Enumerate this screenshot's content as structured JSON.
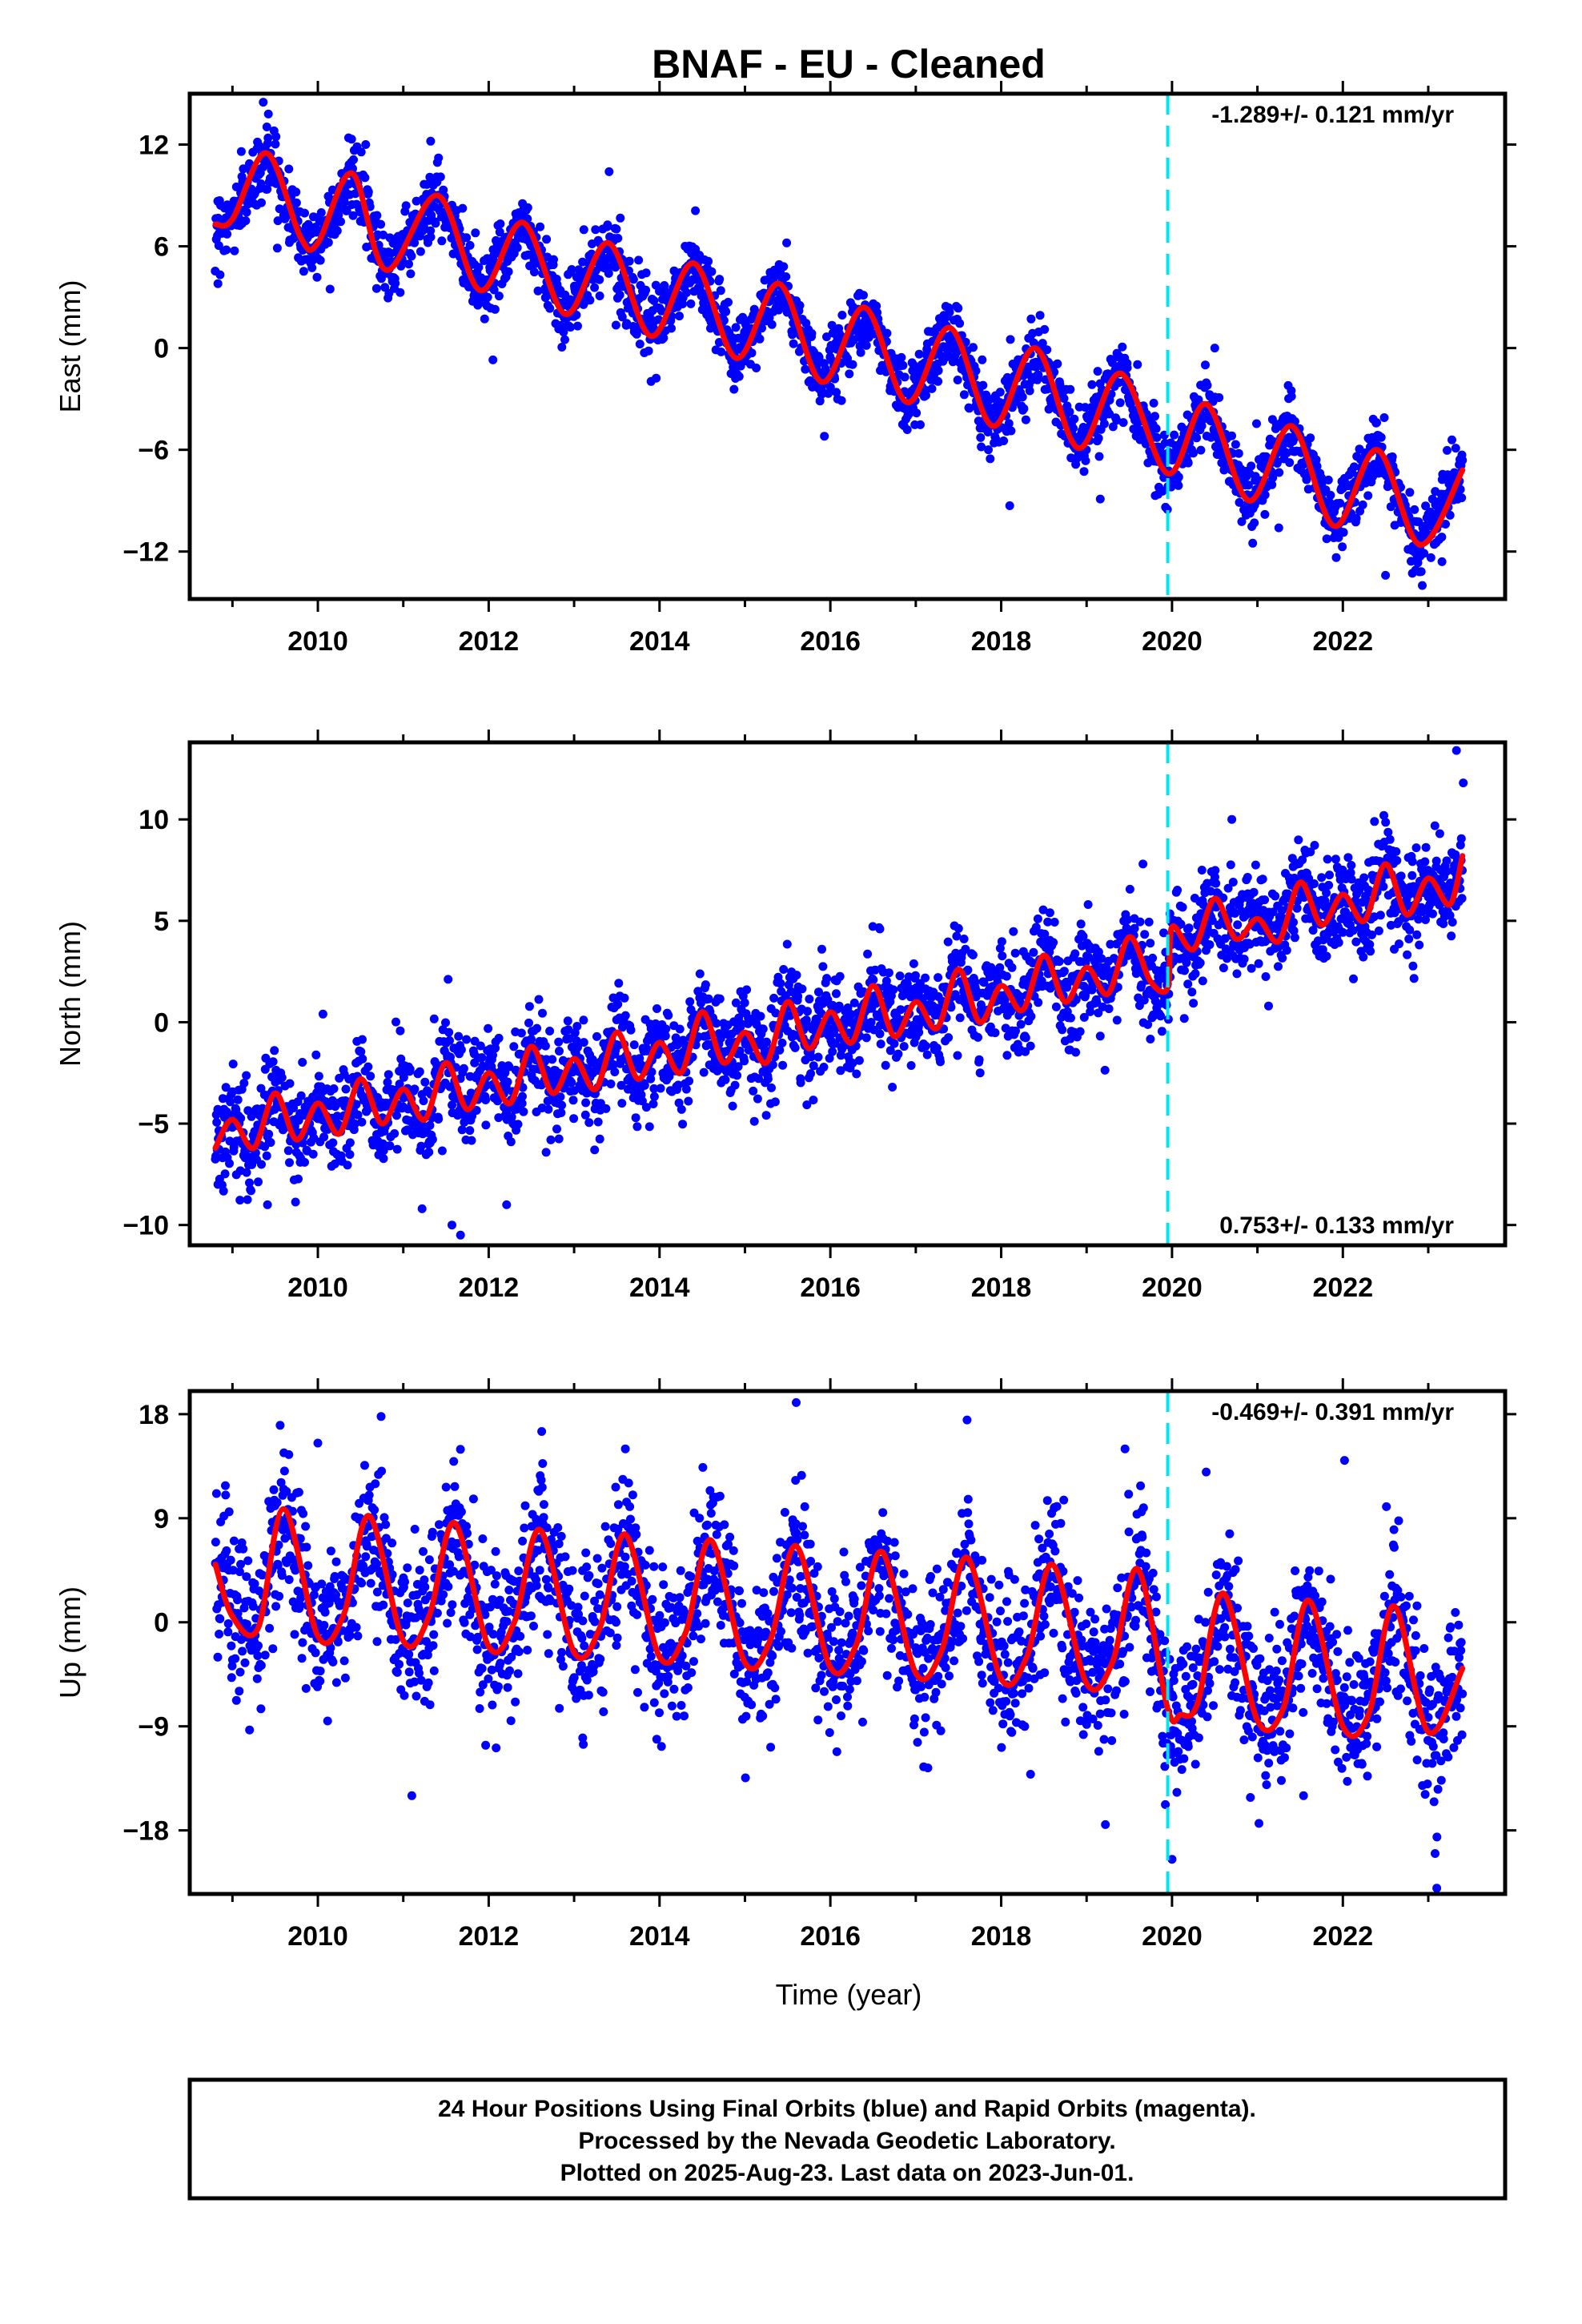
{
  "title": "BNAF  - EU - Cleaned",
  "footer": {
    "lines": [
      "24 Hour Positions Using Final Orbits (blue) and Rapid Orbits (magenta).",
      "Processed by the Nevada Geodetic Laboratory.",
      "Plotted on 2025-Aug-23. Last data on 2023-Jun-01."
    ]
  },
  "colors": {
    "points": "#0000ff",
    "model": "#ff0000",
    "equipment_change": "#00e5f0",
    "frame": "#000000"
  },
  "chart_data": [
    {
      "type": "scatter",
      "name": "east",
      "ylabel": "East (mm)",
      "xlabel": "",
      "xlim": [
        2008.5,
        2023.9
      ],
      "ylim": [
        -14.8,
        15.0
      ],
      "xticks": [
        2010,
        2012,
        2014,
        2016,
        2018,
        2020,
        2022
      ],
      "xtick_labels": [
        "2010",
        "2012",
        "2014",
        "2016",
        "2018",
        "2020",
        "2022"
      ],
      "yticks": [
        12,
        6,
        0,
        -6,
        -12
      ],
      "ytick_labels": [
        "12",
        "6",
        "0",
        "−6",
        "−12"
      ],
      "rate_label": "-1.289+/- 0.121 mm/yr",
      "rate_label_position": "top-right",
      "equipment_change_x": 2019.95,
      "model_x": [
        2008.8,
        2009.0,
        2009.4,
        2009.8,
        2010.0,
        2010.4,
        2010.8,
        2011.4,
        2011.9,
        2012.4,
        2012.9,
        2013.4,
        2013.9,
        2014.4,
        2014.9,
        2015.4,
        2015.9,
        2016.4,
        2016.9,
        2017.4,
        2017.9,
        2018.4,
        2018.9,
        2019.4,
        2019.95,
        2020.4,
        2020.9,
        2021.4,
        2021.9,
        2022.4,
        2022.9,
        2023.4
      ],
      "model_y": [
        7.3,
        7.6,
        11.5,
        6.5,
        6.2,
        10.3,
        4.6,
        9.0,
        3.4,
        7.4,
        2.0,
        6.2,
        0.7,
        5.0,
        -0.6,
        3.8,
        -2.0,
        2.4,
        -3.2,
        1.2,
        -4.6,
        0.0,
        -5.9,
        -1.5,
        -7.4,
        -3.3,
        -9.0,
        -4.6,
        -10.5,
        -6.0,
        -11.6,
        -7.2
      ],
      "sample_points_x": [
        2008.83,
        2009.36,
        2009.42,
        2010.36,
        2010.56,
        2011.32,
        2012.05,
        2013.41,
        2014.42,
        2015.93,
        2018.1,
        2019.16,
        2020.5,
        2021.25,
        2022.5,
        2022.93,
        2023.16
      ],
      "sample_points_y": [
        3.8,
        14.5,
        13.8,
        12.4,
        12.0,
        12.2,
        -0.7,
        10.4,
        8.1,
        -5.2,
        -9.3,
        -8.9,
        0.0,
        -10.6,
        -13.4,
        -14.0,
        -12.6
      ]
    },
    {
      "type": "scatter",
      "name": "north",
      "ylabel": "North (mm)",
      "xlabel": "",
      "xlim": [
        2008.5,
        2023.9
      ],
      "ylim": [
        -11.0,
        13.8
      ],
      "xticks": [
        2010,
        2012,
        2014,
        2016,
        2018,
        2020,
        2022
      ],
      "xtick_labels": [
        "2010",
        "2012",
        "2014",
        "2016",
        "2018",
        "2020",
        "2022"
      ],
      "yticks": [
        10,
        5,
        0,
        -5,
        -10
      ],
      "ytick_labels": [
        "10",
        "5",
        "0",
        "−5",
        "−10"
      ],
      "rate_label": "0.753+/- 0.133 mm/yr",
      "rate_label_position": "bottom-right",
      "equipment_change_x": 2019.95,
      "model_x": [
        2008.8,
        2009.0,
        2009.25,
        2009.5,
        2009.75,
        2010.0,
        2010.25,
        2010.5,
        2010.75,
        2011.0,
        2011.25,
        2011.5,
        2011.75,
        2012.0,
        2012.25,
        2012.5,
        2012.75,
        2013.0,
        2013.25,
        2013.5,
        2013.75,
        2014.0,
        2014.25,
        2014.5,
        2014.75,
        2015.0,
        2015.25,
        2015.5,
        2015.75,
        2016.0,
        2016.25,
        2016.5,
        2016.75,
        2017.0,
        2017.25,
        2017.5,
        2017.75,
        2018.0,
        2018.25,
        2018.5,
        2018.75,
        2019.0,
        2019.25,
        2019.5,
        2019.75,
        2019.95,
        2020.0,
        2020.25,
        2020.5,
        2020.75,
        2021.0,
        2021.25,
        2021.5,
        2021.75,
        2022.0,
        2022.25,
        2022.5,
        2022.75,
        2023.0,
        2023.25,
        2023.4
      ],
      "model_y": [
        -6.2,
        -4.8,
        -6.2,
        -3.5,
        -5.8,
        -4.0,
        -5.5,
        -2.8,
        -5.0,
        -3.3,
        -4.8,
        -2.0,
        -4.3,
        -2.5,
        -4.0,
        -1.2,
        -3.5,
        -1.8,
        -3.3,
        -0.5,
        -2.8,
        -1.0,
        -2.5,
        0.5,
        -2.0,
        -0.5,
        -2.0,
        1.0,
        -1.3,
        0.5,
        -1.0,
        1.8,
        -0.7,
        1.0,
        -0.3,
        2.6,
        0.0,
        1.8,
        0.6,
        3.3,
        1.0,
        2.7,
        1.4,
        4.2,
        2.0,
        1.7,
        4.7,
        3.6,
        6.1,
        4.1,
        5.1,
        4.0,
        6.9,
        4.8,
        6.3,
        5.0,
        7.8,
        5.3,
        7.1,
        5.8,
        8.2
      ],
      "sample_points_x": [
        2008.83,
        2009.41,
        2010.06,
        2011.22,
        2011.57,
        2011.67,
        2012.21,
        2014.47,
        2015.9,
        2016.58,
        2018.57,
        2019.66,
        2020.35,
        2020.7,
        2021.13,
        2022.37,
        2023.33,
        2023.41
      ],
      "sample_points_y": [
        -8.0,
        -9.0,
        0.4,
        -9.2,
        -10.0,
        -10.5,
        -9.0,
        1.2,
        3.6,
        4.6,
        5.4,
        7.8,
        7.5,
        10.0,
        0.8,
        9.9,
        13.4,
        11.8
      ]
    },
    {
      "type": "scatter",
      "name": "up",
      "ylabel": "Up (mm)",
      "xlabel": "Time (year)",
      "xlim": [
        2008.5,
        2023.9
      ],
      "ylim": [
        -23.5,
        20.0
      ],
      "xticks": [
        2010,
        2012,
        2014,
        2016,
        2018,
        2020,
        2022
      ],
      "xtick_labels": [
        "2010",
        "2012",
        "2014",
        "2016",
        "2018",
        "2020",
        "2022"
      ],
      "yticks": [
        18,
        9,
        0,
        -9,
        -18
      ],
      "ytick_labels": [
        "18",
        "9",
        "0",
        "−9",
        "−18"
      ],
      "rate_label": "-0.469+/- 0.391 mm/yr",
      "rate_label_position": "top-right",
      "equipment_change_x": 2019.95,
      "model_x": [
        2008.8,
        2009.0,
        2009.3,
        2009.6,
        2010.0,
        2010.3,
        2010.6,
        2011.0,
        2011.3,
        2011.6,
        2012.0,
        2012.3,
        2012.6,
        2013.0,
        2013.3,
        2013.6,
        2014.0,
        2014.3,
        2014.6,
        2015.0,
        2015.3,
        2015.6,
        2016.0,
        2016.3,
        2016.6,
        2017.0,
        2017.3,
        2017.6,
        2018.0,
        2018.3,
        2018.6,
        2019.0,
        2019.3,
        2019.6,
        2019.95,
        2020.1,
        2020.3,
        2020.6,
        2021.0,
        2021.3,
        2021.6,
        2022.0,
        2022.3,
        2022.6,
        2023.0,
        2023.4
      ],
      "model_y": [
        5.0,
        0.5,
        -0.5,
        9.8,
        -1.2,
        0.6,
        9.2,
        -1.6,
        0.5,
        8.6,
        -2.1,
        0.0,
        8.0,
        -2.6,
        -0.5,
        7.6,
        -3.0,
        -1.0,
        7.1,
        -3.5,
        -1.5,
        6.6,
        -3.9,
        -2.0,
        6.1,
        -4.4,
        -2.5,
        5.6,
        -4.9,
        -3.0,
        5.0,
        -5.3,
        -3.5,
        4.6,
        -7.5,
        -8.0,
        -7.0,
        2.5,
        -8.5,
        -7.5,
        1.9,
        -9.0,
        -8.0,
        1.4,
        -9.5,
        -4.0
      ],
      "sample_points_x": [
        2008.92,
        2009.66,
        2010.0,
        2010.74,
        2011.1,
        2012.62,
        2013.1,
        2013.6,
        2015.6,
        2015.7,
        2017.6,
        2019.22,
        2019.45,
        2020.0,
        2020.4,
        2021.54,
        2022.02,
        2022.51,
        2023.08,
        2023.1
      ],
      "sample_points_y": [
        11.0,
        14.5,
        15.5,
        17.8,
        -15.0,
        16.5,
        -10.0,
        15.0,
        19.0,
        10.0,
        17.5,
        -17.5,
        15.0,
        -20.5,
        13.0,
        -15.0,
        14.0,
        10.0,
        -20.0,
        -23.0
      ]
    }
  ]
}
